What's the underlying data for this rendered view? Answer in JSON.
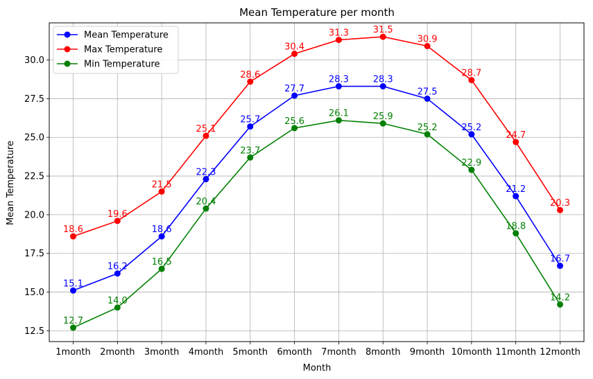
{
  "chart_data": {
    "type": "line",
    "title": "Mean Temperature per month",
    "xlabel": "Month",
    "ylabel": "Mean Temperature",
    "categories": [
      "1month",
      "2month",
      "3month",
      "4month",
      "5month",
      "6month",
      "7month",
      "8month",
      "9month",
      "10month",
      "11month",
      "12month"
    ],
    "ylim": [
      11.8,
      32.4
    ],
    "yticks": [
      12.5,
      15.0,
      17.5,
      20.0,
      22.5,
      25.0,
      27.5,
      30.0
    ],
    "ytick_labels": [
      "12.5",
      "15.0",
      "17.5",
      "20.0",
      "22.5",
      "25.0",
      "27.5",
      "30.0"
    ],
    "grid": true,
    "legend_position": "top-left",
    "series": [
      {
        "name": "Mean Temperature",
        "color": "#0000ff",
        "values": [
          15.1,
          16.2,
          18.6,
          22.3,
          25.7,
          27.7,
          28.3,
          28.3,
          27.5,
          25.2,
          21.2,
          16.7
        ],
        "labels": [
          "15.1",
          "16.2",
          "18.6",
          "22.3",
          "25.7",
          "27.7",
          "28.3",
          "28.3",
          "27.5",
          "25.2",
          "21.2",
          "16.7"
        ]
      },
      {
        "name": "Max Temperature",
        "color": "#ff0000",
        "values": [
          18.6,
          19.6,
          21.5,
          25.1,
          28.6,
          30.4,
          31.3,
          31.5,
          30.9,
          28.7,
          24.7,
          20.3
        ],
        "labels": [
          "18.6",
          "19.6",
          "21.5",
          "25.1",
          "28.6",
          "30.4",
          "31.3",
          "31.5",
          "30.9",
          "28.7",
          "24.7",
          "20.3"
        ]
      },
      {
        "name": "Min Temperature",
        "color": "#008000",
        "values": [
          12.7,
          14.0,
          16.5,
          20.4,
          23.7,
          25.6,
          26.1,
          25.9,
          25.2,
          22.9,
          18.8,
          14.2
        ],
        "labels": [
          "12.7",
          "14.0",
          "16.5",
          "20.4",
          "23.7",
          "25.6",
          "26.1",
          "25.9",
          "25.2",
          "22.9",
          "18.8",
          "14.2"
        ]
      }
    ]
  }
}
